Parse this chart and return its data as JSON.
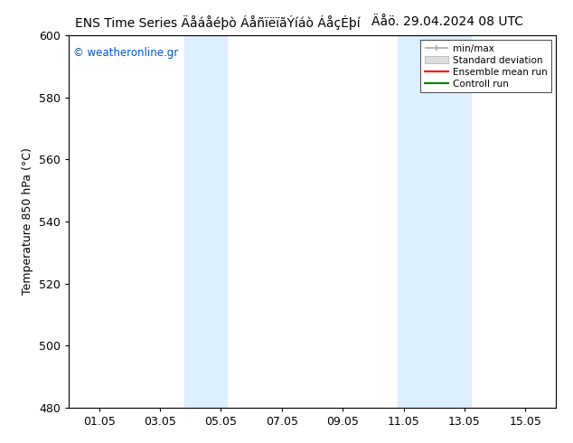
{
  "title": "ENS Time Series ÄåáåÉðò ÁåñïëïãÝíáò ÁåçÉðí",
  "title_text": "ENS Time Series ÄåáåÉðò ÁåñïëïãÝíáò ÁåçÉðí",
  "title_right": "Äåö. 29.04.2024 08 UTC",
  "ylabel": "Temperature 850 hPa (°C)",
  "watermark": "© weatheronline.gr",
  "ylim": [
    480,
    600
  ],
  "yticks": [
    480,
    500,
    520,
    540,
    560,
    580,
    600
  ],
  "xtick_labels": [
    "01.05",
    "03.05",
    "05.05",
    "07.05",
    "09.05",
    "11.05",
    "13.05",
    "15.05"
  ],
  "xtick_positions": [
    1,
    3,
    5,
    7,
    9,
    11,
    13,
    15
  ],
  "xlim": [
    0,
    16
  ],
  "shade_regions": [
    {
      "start": 3.8,
      "end": 5.2
    },
    {
      "start": 10.8,
      "end": 13.2
    }
  ],
  "shade_color": "#ddeeff",
  "legend_labels": [
    "min/max",
    "Standard deviation",
    "Ensemble mean run",
    "Controll run"
  ],
  "legend_line_colors": [
    "#aaaaaa",
    "#cccccc",
    "#ff0000",
    "#008000"
  ],
  "background_color": "#ffffff",
  "title_fontsize": 10,
  "axis_fontsize": 9,
  "tick_fontsize": 9,
  "watermark_color": "#0055cc"
}
